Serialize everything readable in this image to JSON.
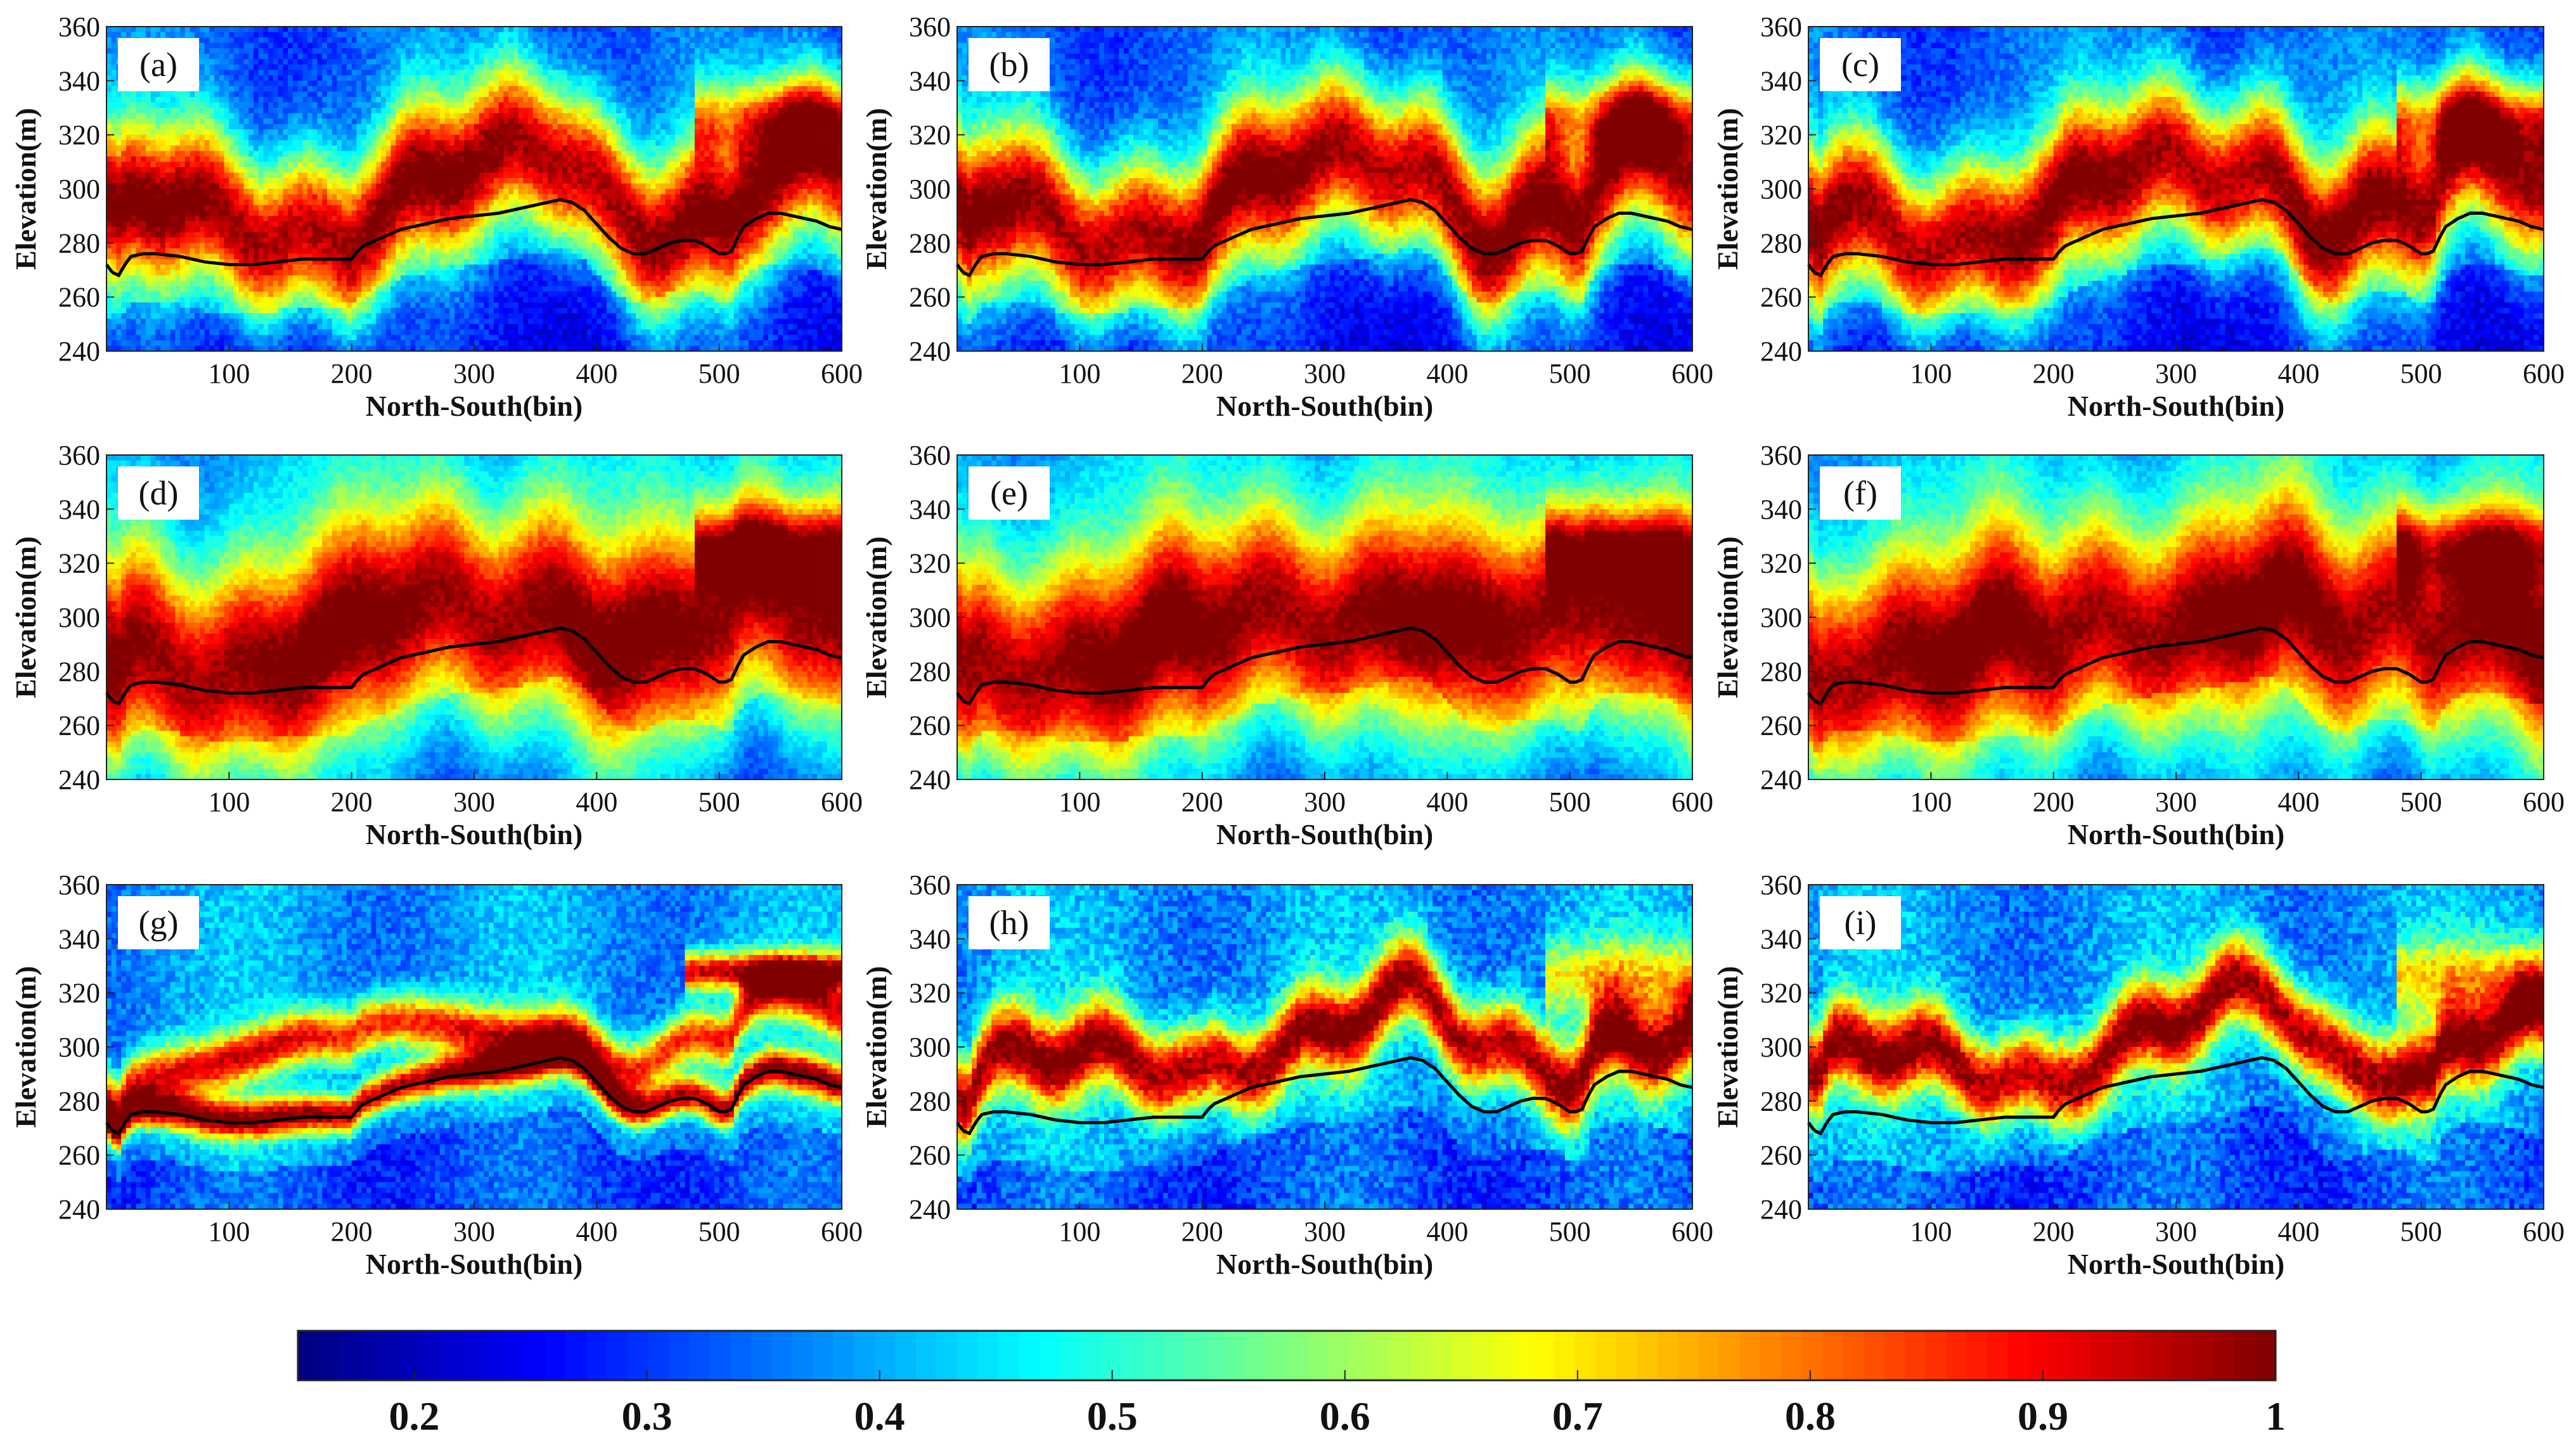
{
  "chart_data": {
    "type": "heatmap",
    "colormap": "jet",
    "grid": false,
    "panels": [
      {
        "label": "(a)",
        "variant": "broad",
        "seed": 1
      },
      {
        "label": "(b)",
        "variant": "broad",
        "seed": 2
      },
      {
        "label": "(c)",
        "variant": "broad",
        "seed": 3
      },
      {
        "label": "(d)",
        "variant": "wide",
        "seed": 4
      },
      {
        "label": "(e)",
        "variant": "wide",
        "seed": 5
      },
      {
        "label": "(f)",
        "variant": "wide",
        "seed": 6
      },
      {
        "label": "(g)",
        "variant": "sharp",
        "seed": 7
      },
      {
        "label": "(h)",
        "variant": "medium",
        "seed": 8
      },
      {
        "label": "(i)",
        "variant": "medium",
        "seed": 9
      }
    ],
    "xlabel": "North-South(bin)",
    "ylabel": "Elevation(m)",
    "xlim": [
      0,
      600
    ],
    "ylim": [
      240,
      360
    ],
    "xticks": [
      "100",
      "200",
      "300",
      "400",
      "500",
      "600"
    ],
    "yticks": [
      "240",
      "260",
      "280",
      "300",
      "320",
      "340",
      "360"
    ],
    "ground_profile": {
      "x": [
        0,
        5,
        10,
        15,
        20,
        30,
        40,
        60,
        80,
        100,
        120,
        140,
        160,
        180,
        190,
        200,
        205,
        210,
        220,
        230,
        240,
        260,
        280,
        300,
        320,
        340,
        360,
        370,
        380,
        390,
        400,
        410,
        420,
        430,
        440,
        450,
        460,
        470,
        480,
        490,
        500,
        505,
        510,
        515,
        520,
        530,
        540,
        550,
        560,
        570,
        580,
        590,
        600
      ],
      "y": [
        272,
        269,
        268,
        272,
        275,
        276,
        276,
        275,
        273,
        272,
        272,
        273,
        274,
        274,
        274,
        274,
        277,
        279,
        281,
        283,
        285,
        287,
        289,
        290,
        291,
        293,
        295,
        296,
        295,
        292,
        287,
        282,
        278,
        276,
        276,
        278,
        280,
        281,
        281,
        279,
        276,
        276,
        277,
        282,
        286,
        289,
        291,
        291,
        290,
        289,
        288,
        286,
        285
      ],
      "color": "#000000"
    },
    "colorbar": {
      "min": 0.15,
      "max": 1.0,
      "ticks": [
        "0.2",
        "0.3",
        "0.4",
        "0.5",
        "0.6",
        "0.7",
        "0.8",
        "0.9",
        "1"
      ]
    }
  }
}
